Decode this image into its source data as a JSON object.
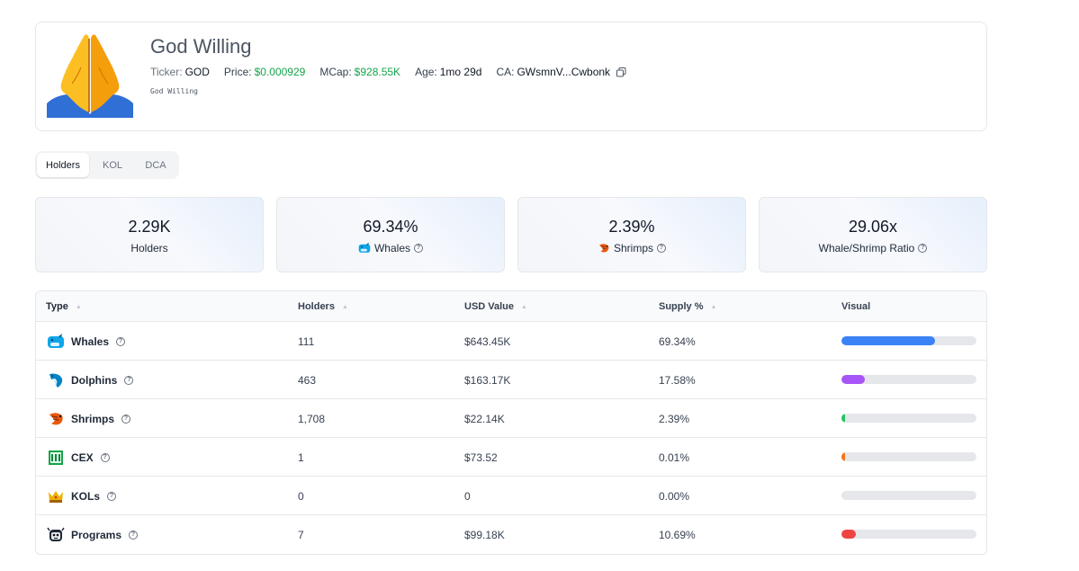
{
  "token": {
    "name": "God Willing",
    "ticker_label": "Ticker:",
    "ticker": "GOD",
    "price_label": "Price:",
    "price": "$0.000929",
    "mcap_label": "MCap:",
    "mcap": "$928.55K",
    "age_label": "Age:",
    "age": "1mo 29d",
    "ca_label": "CA:",
    "ca": "GWsmnV...Cwbonk",
    "description": "God Willing",
    "image_icon": "folded-hands-emoji"
  },
  "tabs": [
    {
      "label": "Holders",
      "active": true
    },
    {
      "label": "KOL",
      "active": false
    },
    {
      "label": "DCA",
      "active": false
    }
  ],
  "stats": [
    {
      "value": "2.29K",
      "label": "Holders",
      "icon": "",
      "help": false
    },
    {
      "value": "69.34%",
      "label": "Whales",
      "icon": "whale-icon",
      "help": true
    },
    {
      "value": "2.39%",
      "label": "Shrimps",
      "icon": "shrimp-icon",
      "help": true
    },
    {
      "value": "29.06x",
      "label": "Whale/Shrimp Ratio",
      "icon": "",
      "help": true
    }
  ],
  "table": {
    "columns": [
      "Type",
      "Holders",
      "USD Value",
      "Supply %",
      "Visual"
    ],
    "rows": [
      {
        "type": "Whales",
        "icon": "whale-icon",
        "holders": "111",
        "usd": "$643.45K",
        "supply": "69.34%",
        "fill": 0.6934,
        "color": "#3b82f6"
      },
      {
        "type": "Dolphins",
        "icon": "dolphin-icon",
        "holders": "463",
        "usd": "$163.17K",
        "supply": "17.58%",
        "fill": 0.1758,
        "color": "#a855f7"
      },
      {
        "type": "Shrimps",
        "icon": "shrimp-icon",
        "holders": "1,708",
        "usd": "$22.14K",
        "supply": "2.39%",
        "fill": 0.0239,
        "color": "#22c55e"
      },
      {
        "type": "CEX",
        "icon": "bank-icon",
        "holders": "1",
        "usd": "$73.52",
        "supply": "0.01%",
        "fill": 0.0001,
        "color": "#f97316"
      },
      {
        "type": "KOLs",
        "icon": "crown-icon",
        "holders": "0",
        "usd": "0",
        "supply": "0.00%",
        "fill": 0.0,
        "color": "#eab308"
      },
      {
        "type": "Programs",
        "icon": "robot-icon",
        "holders": "7",
        "usd": "$99.18K",
        "supply": "10.69%",
        "fill": 0.1069,
        "color": "#ef4444"
      }
    ]
  }
}
